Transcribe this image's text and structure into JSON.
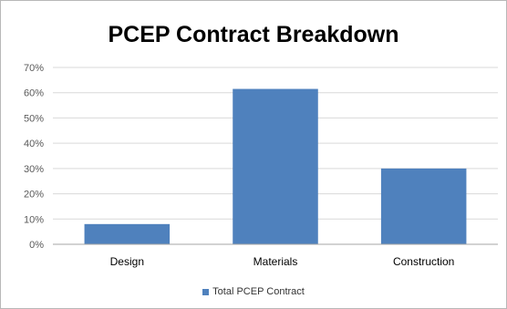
{
  "chart_data": {
    "type": "bar",
    "title": "PCEP Contract Breakdown",
    "categories": [
      "Design",
      "Materials",
      "Construction"
    ],
    "series": [
      {
        "name": "Total PCEP Contract",
        "values": [
          8,
          61.5,
          30
        ],
        "color": "#4f81bd"
      }
    ],
    "ylim": [
      0,
      70
    ],
    "yticks": [
      "0%",
      "10%",
      "20%",
      "30%",
      "40%",
      "50%",
      "60%",
      "70%"
    ],
    "grid": true,
    "legend_position": "bottom"
  }
}
